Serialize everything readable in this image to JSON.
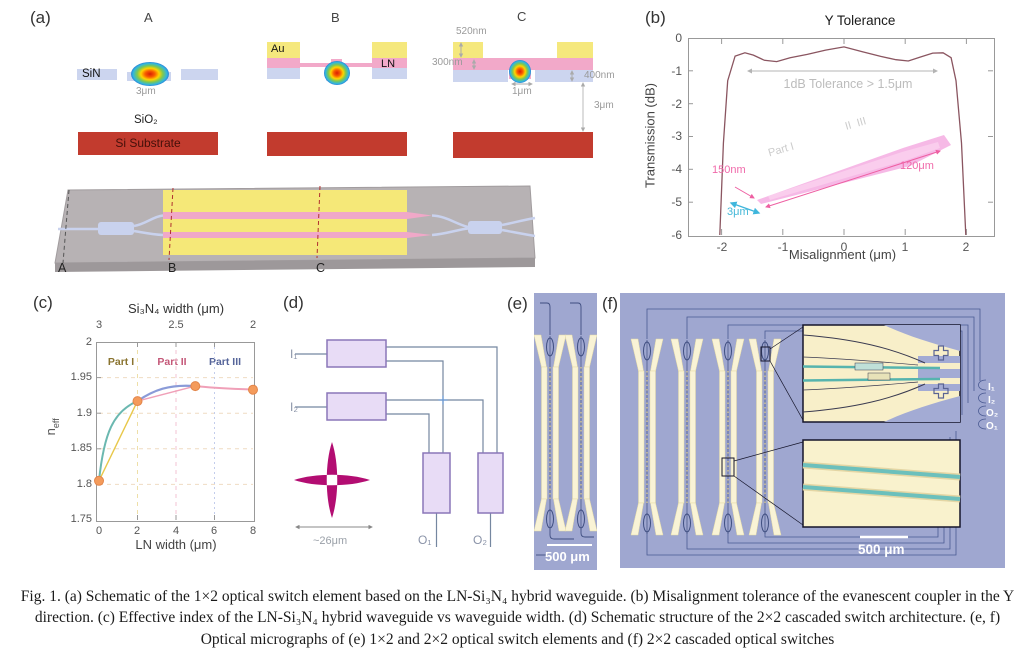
{
  "figure": {
    "caption": "Fig. 1. (a) Schematic of the 1×2 optical switch element based on the LN-Si₃N₄ hybrid waveguide. (b) Misalignment tolerance of the evanescent coupler in the Y direction. (c) Effective index of the LN-Si₃N₄ hybrid waveguide vs waveguide width. (d) Schematic structure of the 2×2 cascaded switch architecture. (e, f) Optical micrographs of (e) 1×2 and 2×2 optical switch elements and (f) 2×2 cascaded optical switches"
  },
  "panel_a": {
    "label": "(a)",
    "section_a": {
      "title": "A",
      "sin": "SiN",
      "mode_width": "3μm",
      "sio2": "SiO₂",
      "substrate": "Si Substrate"
    },
    "section_b": {
      "title": "B",
      "au": "Au",
      "ln": "LN"
    },
    "section_c": {
      "title": "C",
      "au_thickness": "520nm",
      "ln_thickness": "300nm",
      "sin_thickness": "400nm",
      "ridge_width": "1μm",
      "buffer": "3μm"
    },
    "chip": {
      "a": "A",
      "b": "B",
      "c": "C"
    }
  },
  "panel_b": {
    "label": "(b)",
    "title": "Y Tolerance",
    "xlabel": "Misalignment (μm)",
    "ylabel": "Transmission (dB)",
    "tolerance_note": "1dB Tolerance > 1.5μm",
    "ann_150nm": "150nm",
    "ann_120um": "120μm",
    "ann_3um": "3μm",
    "ann_part1": "Part I",
    "ann_part23": "II  III",
    "xticks": [
      "-2",
      "-1",
      "0",
      "1",
      "2"
    ],
    "yticks": [
      "0",
      "-1",
      "-2",
      "-3",
      "-4",
      "-5",
      "-6"
    ]
  },
  "panel_c": {
    "label": "(c)",
    "top_axis_label": "Si₃N₄ width (μm)",
    "xlabel": "LN width (μm)",
    "ylabel_main": "n",
    "ylabel_sub": "eff",
    "top_ticks": [
      "3",
      "2.5",
      "2"
    ],
    "xticks": [
      "0",
      "2",
      "4",
      "6",
      "8"
    ],
    "yticks": [
      "2",
      "1.95",
      "1.9",
      "1.85",
      "1.8",
      "1.75"
    ],
    "region1": "Part I",
    "region2": "Part II",
    "region3": "Part III"
  },
  "panel_d": {
    "label": "(d)",
    "in1": "I₁",
    "in2": "I₂",
    "out1": "O₁",
    "out2": "O₂",
    "scale": "~26μm"
  },
  "panel_e": {
    "label": "(e)",
    "scale_bar": "500 μm"
  },
  "panel_f": {
    "label": "(f)",
    "scale_bar": "500 μm",
    "port1": "I₁",
    "port2": "I₂",
    "port3": "O₂",
    "port4": "O₁"
  },
  "chart_data": [
    {
      "type": "line",
      "title": "Y Tolerance",
      "xlabel": "Misalignment (μm)",
      "ylabel": "Transmission (dB)",
      "xlim": [
        -2.55,
        2.45
      ],
      "ylim": [
        -6,
        0
      ],
      "xticks": [
        -2,
        -1,
        0,
        1,
        2
      ],
      "yticks": [
        0,
        -1,
        -2,
        -3,
        -4,
        -5,
        -6
      ],
      "grid": false,
      "legend": "none",
      "series": [
        {
          "name": "transmission_dB",
          "color": "#8a5560",
          "points": [
            [
              -2.03,
              -6
            ],
            [
              -1.97,
              -3.2
            ],
            [
              -1.9,
              -1.3
            ],
            [
              -1.78,
              -0.55
            ],
            [
              -1.62,
              -0.45
            ],
            [
              -1.48,
              -0.52
            ],
            [
              -1.3,
              -0.68
            ],
            [
              -1.1,
              -0.72
            ],
            [
              -0.88,
              -0.6
            ],
            [
              -0.6,
              -0.5
            ],
            [
              -0.3,
              -0.37
            ],
            [
              0,
              -0.27
            ],
            [
              0.3,
              -0.42
            ],
            [
              0.6,
              -0.56
            ],
            [
              0.85,
              -0.66
            ],
            [
              1.05,
              -0.7
            ],
            [
              1.25,
              -0.58
            ],
            [
              1.45,
              -0.46
            ],
            [
              1.62,
              -0.45
            ],
            [
              1.75,
              -0.6
            ],
            [
              1.83,
              -1.3
            ],
            [
              1.92,
              -3.2
            ],
            [
              1.99,
              -6
            ]
          ]
        }
      ],
      "annotations": [
        "1dB Tolerance > 1.5μm",
        "150nm",
        "120μm",
        "3μm",
        "Part I",
        "II  III"
      ]
    },
    {
      "type": "line",
      "top_axis_label": "Si₃N₄ width (μm)",
      "xlabel": "LN width (μm)",
      "ylabel": "n_eff",
      "xlim": [
        0,
        8
      ],
      "ylim": [
        1.75,
        2
      ],
      "xticks": [
        0,
        2,
        4,
        6,
        8
      ],
      "top_ticks": [
        3,
        2.5,
        2
      ],
      "yticks": [
        2,
        1.95,
        1.9,
        1.85,
        1.8,
        1.75
      ],
      "grid": true,
      "x": [
        0,
        2,
        5,
        8
      ],
      "y": [
        1.805,
        1.917,
        1.938,
        1.933
      ],
      "regions": [
        "Part I",
        "Part II",
        "Part III"
      ]
    }
  ],
  "colors": {
    "micrograph_bg": "#9fa7d0",
    "electrode_cream": "#f9f3d6",
    "au_yellow": "#f5e87d",
    "ln_pink": "#f2a9c9",
    "sin_blue": "#ccd5ef",
    "substrate_red": "#c23b2e",
    "curve_maroon": "#8a5560",
    "marker_orange": "#f49b5b",
    "taper_pink": "#f4a8e0",
    "annotation_cyan": "#45b8d8"
  }
}
